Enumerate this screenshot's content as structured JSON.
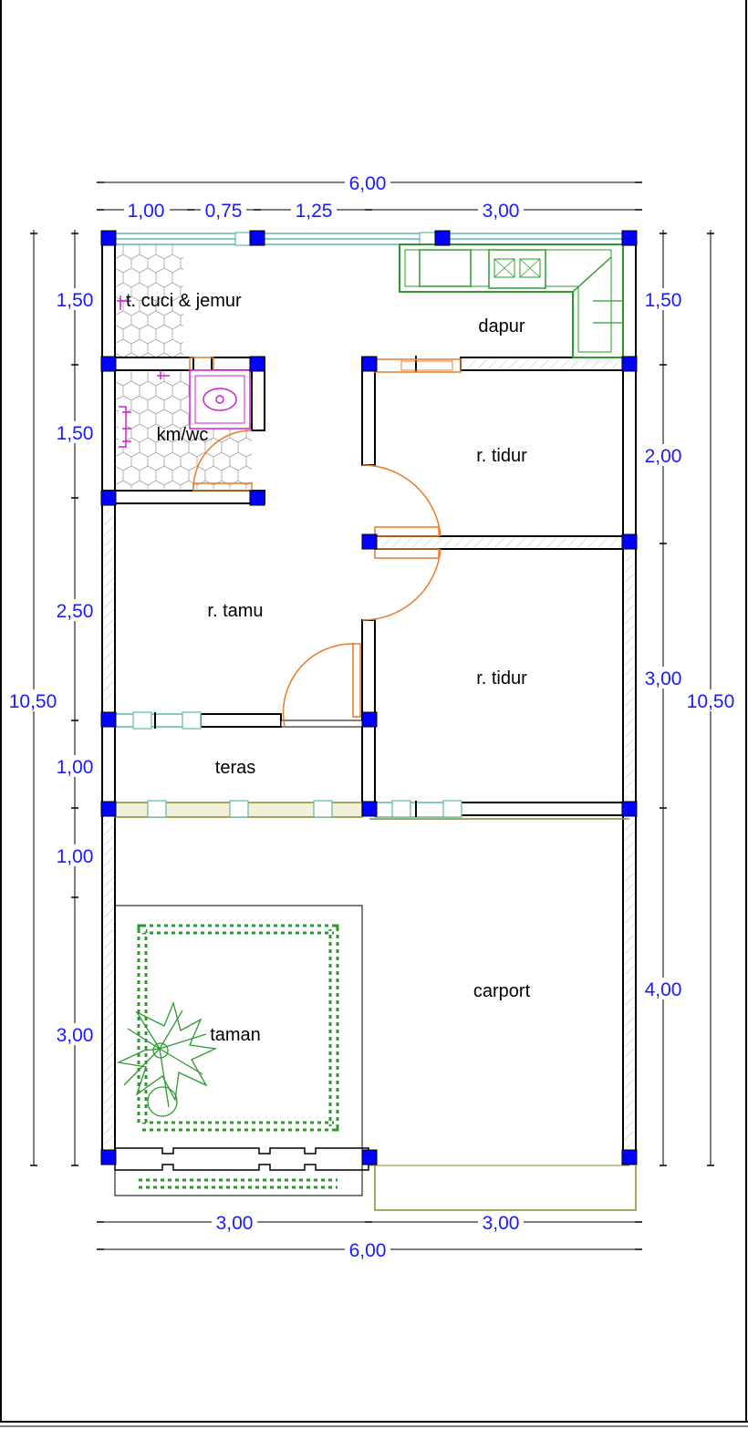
{
  "colors": {
    "wall": "#000000",
    "column": "#0000ff",
    "dimension": "#1a1aff",
    "door": "#e87a2a",
    "window": "#5fb7a8",
    "kitchen": "#2e9a2e",
    "sanitary": "#d020d0",
    "garden": "#2e9a2e",
    "outline": "#8a8a2a"
  },
  "rooms": {
    "laundry": "t. cuci & jemur",
    "kitchen": "dapur",
    "bath": "km/wc",
    "bed1": "r. tidur",
    "bed2": "r. tidur",
    "living": "r. tamu",
    "porch": "teras",
    "carport": "carport",
    "garden": "taman"
  },
  "dimensions": {
    "top_total": "6,00",
    "top_seg1": "1,00",
    "top_seg2": "0,75",
    "top_seg3": "1,25",
    "top_seg4": "3,00",
    "left_1": "1,50",
    "left_2": "1,50",
    "left_3": "2,50",
    "left_4": "1,00",
    "left_5": "1,00",
    "left_6": "3,00",
    "left_total": "10,50",
    "right_1": "1,50",
    "right_2": "2,00",
    "right_3": "3,00",
    "right_4": "4,00",
    "right_total": "10,50",
    "bottom_seg1": "3,00",
    "bottom_seg2": "3,00",
    "bottom_total": "6,00"
  }
}
